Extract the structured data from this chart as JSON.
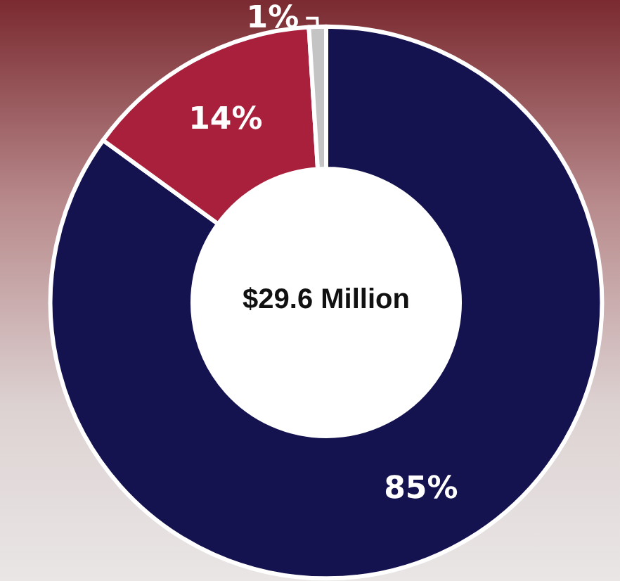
{
  "chart_data": {
    "type": "donut",
    "categories": [
      null,
      null,
      null
    ],
    "values": [
      85,
      14,
      1
    ],
    "colors": [
      "#15134f",
      "#a8203c",
      "#c4c4c4"
    ],
    "value_labels": [
      "85%",
      "14%",
      "1%"
    ],
    "annotations": [
      "$29.6 Million"
    ]
  }
}
